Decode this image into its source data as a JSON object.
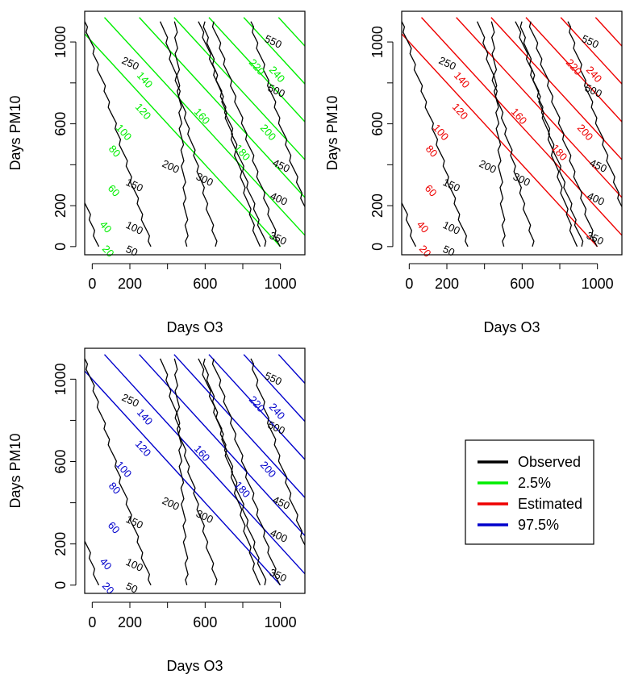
{
  "figure": {
    "legend": {
      "entries": [
        {
          "label": "Observed",
          "color": "#000000"
        },
        {
          "label": "2.5%",
          "color": "#00ee00"
        },
        {
          "label": "Estimated",
          "color": "#ee0000"
        },
        {
          "label": "97.5%",
          "color": "#0000cc"
        }
      ]
    }
  },
  "chart_data": [
    {
      "type": "contour",
      "panel": "2.5%",
      "xlabel": "Days O3",
      "ylabel": "Days PM10",
      "xlim": [
        -40,
        1130
      ],
      "ylim": [
        -40,
        1150
      ],
      "x_ticks": [
        0,
        200,
        600,
        1000
      ],
      "x_tick_marks": [
        0,
        200,
        400,
        600,
        800,
        1000
      ],
      "y_ticks": [
        0,
        200,
        600,
        1000
      ],
      "y_tick_marks": [
        0,
        200,
        400,
        600,
        800,
        1000
      ],
      "contour_color": "#00ee00",
      "contour_levels": [
        20,
        40,
        60,
        80,
        100,
        120,
        140,
        160,
        180,
        200,
        220,
        240
      ],
      "observed_contour_levels": [
        50,
        100,
        150,
        200,
        250,
        300,
        350,
        400,
        450,
        500,
        550
      ]
    },
    {
      "type": "contour",
      "panel": "Estimated",
      "xlabel": "Days O3",
      "ylabel": "Days PM10",
      "xlim": [
        -40,
        1130
      ],
      "ylim": [
        -40,
        1150
      ],
      "x_ticks": [
        0,
        200,
        600,
        1000
      ],
      "x_tick_marks": [
        0,
        200,
        400,
        600,
        800,
        1000
      ],
      "y_ticks": [
        0,
        200,
        600,
        1000
      ],
      "y_tick_marks": [
        0,
        200,
        400,
        600,
        800,
        1000
      ],
      "contour_color": "#ee0000",
      "contour_levels": [
        20,
        40,
        60,
        80,
        100,
        120,
        140,
        160,
        180,
        200,
        220,
        240
      ],
      "observed_contour_levels": [
        50,
        100,
        150,
        200,
        250,
        300,
        350,
        400,
        450,
        500,
        550
      ]
    },
    {
      "type": "contour",
      "panel": "97.5%",
      "xlabel": "Days O3",
      "ylabel": "Days PM10",
      "xlim": [
        -40,
        1130
      ],
      "ylim": [
        -40,
        1150
      ],
      "x_ticks": [
        0,
        200,
        600,
        1000
      ],
      "x_tick_marks": [
        0,
        200,
        400,
        600,
        800,
        1000
      ],
      "y_ticks": [
        0,
        200,
        600,
        1000
      ],
      "y_tick_marks": [
        0,
        200,
        400,
        600,
        800,
        1000
      ],
      "contour_color": "#0000cc",
      "contour_levels": [
        20,
        40,
        60,
        80,
        100,
        120,
        140,
        160,
        180,
        200,
        220,
        240
      ],
      "observed_contour_levels": [
        50,
        100,
        150,
        200,
        250,
        300,
        350,
        400,
        450,
        500,
        550
      ]
    }
  ]
}
